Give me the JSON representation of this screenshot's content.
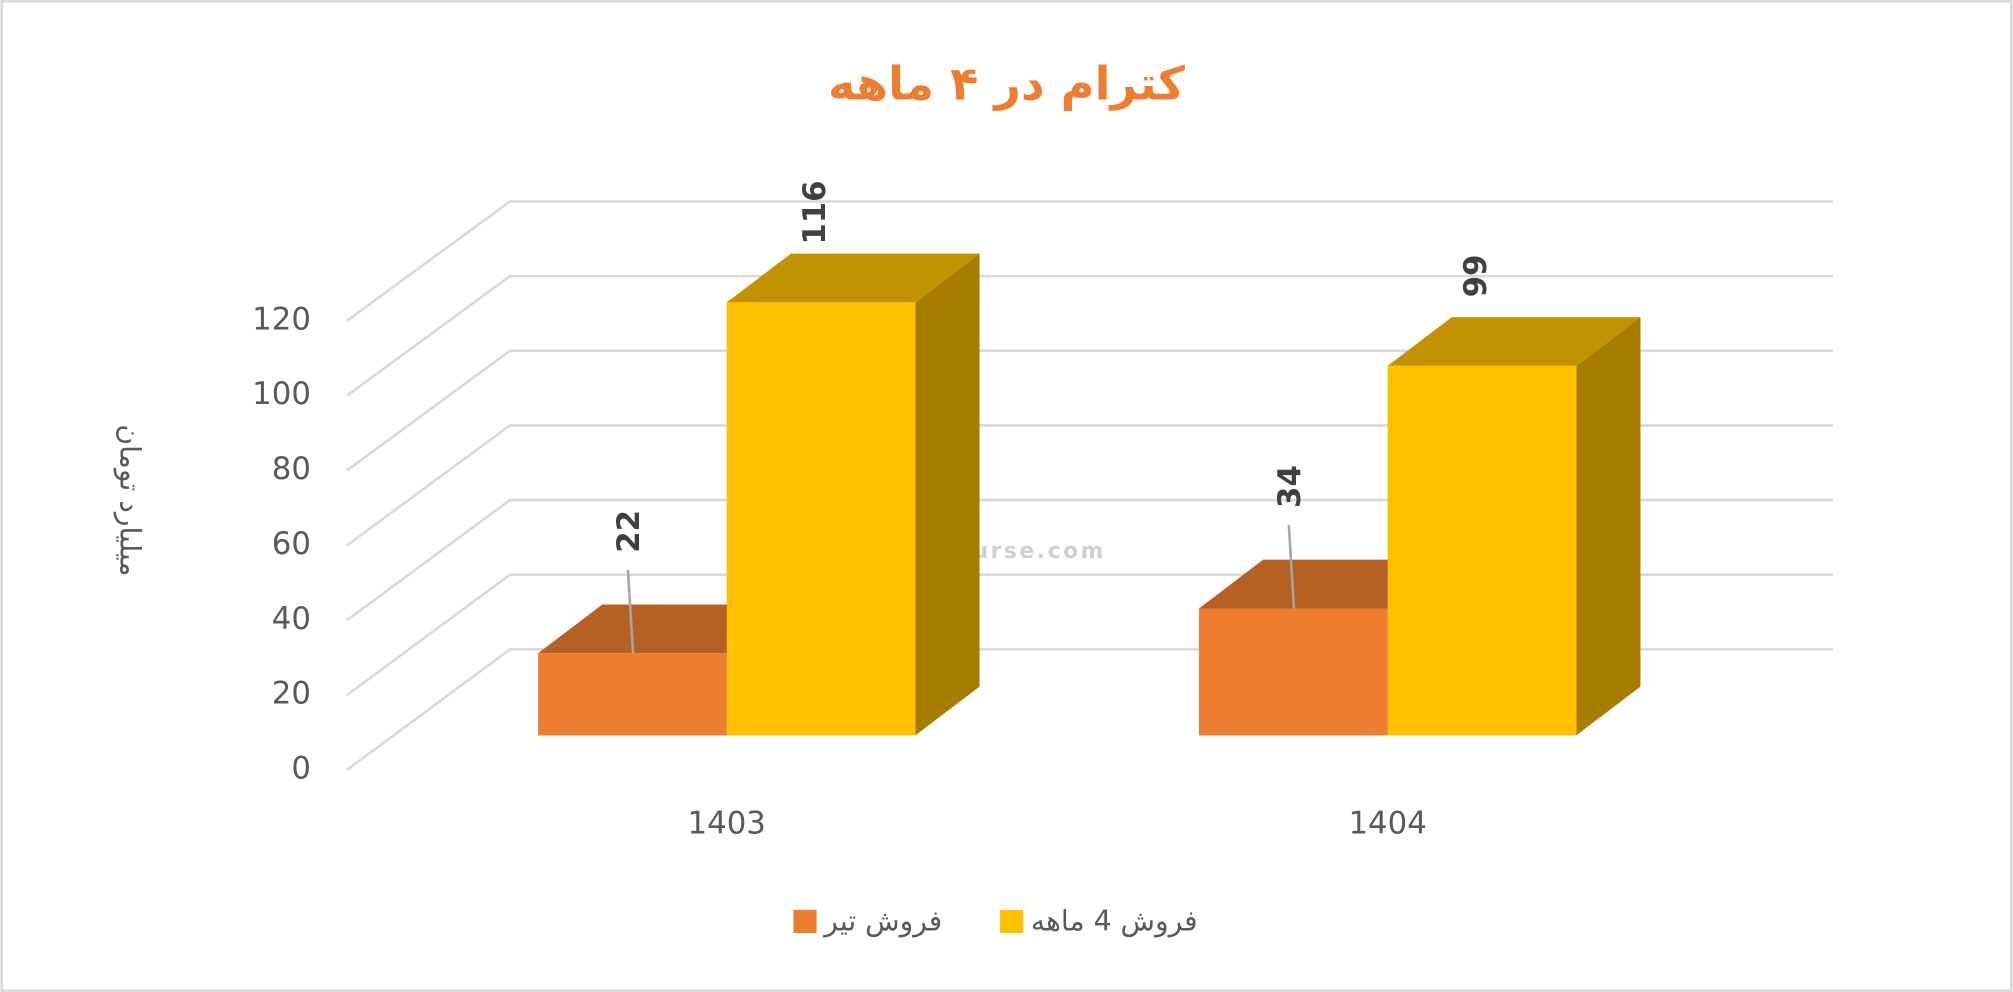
{
  "chart_data": {
    "type": "bar3d",
    "title": "کترام در ۴ ماهه",
    "y_axis_label": "میلیارد تومان",
    "watermark": "nabzebourse.com",
    "categories": [
      "1403",
      "1404"
    ],
    "series": [
      {
        "name": "فروش تیر",
        "color": "#ED7D31",
        "values": [
          22,
          34
        ]
      },
      {
        "name": "فروش 4  ماهه",
        "color": "#FFC000",
        "values": [
          116,
          99
        ]
      }
    ],
    "ylim": [
      0,
      120
    ],
    "yticks": [
      0,
      20,
      40,
      60,
      80,
      100,
      120
    ],
    "grid": true
  }
}
